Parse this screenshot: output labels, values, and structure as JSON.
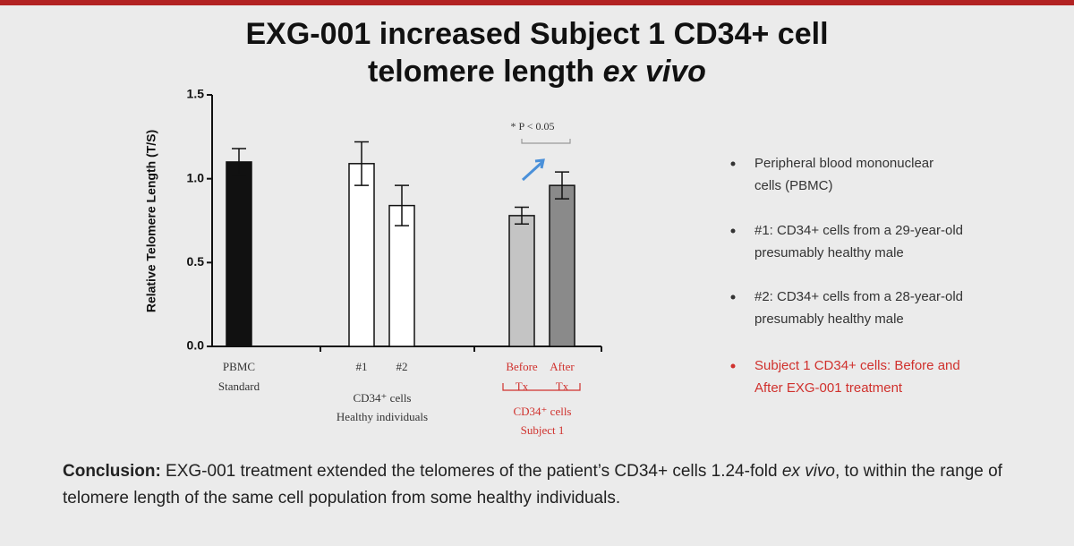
{
  "slide": {
    "title": "EXG-001 increased Subject 1 CD34+ cell",
    "title_line2": "telomere length",
    "title_italic": "ex vivo",
    "bullets": [
      {
        "lines": [
          "Peripheral blood mononuclear",
          "cells (PBMC)"
        ],
        "color": "#333333"
      },
      {
        "lines": [
          "#1: CD34+ cells from a 29-year-old",
          "presumably healthy male"
        ],
        "color": "#333333"
      },
      {
        "lines": [
          "#2: CD34+ cells from a 28-year-old",
          "presumably healthy male"
        ],
        "color": "#333333"
      },
      {
        "lines": [
          "Subject 1 CD34+ cells: Before and",
          "After EXG-001 treatment"
        ],
        "color": "#d0312d"
      }
    ],
    "conclusion_label": "Conclusion:",
    "conclusion_text": " EXG-001 treatment extended the telomeres of the patient’s CD34+ cells 1.24-fold ",
    "conclusion_italic": "ex vivo",
    "conclusion_end": ", to within the range of telomere length of the same cell population from some healthy individuals."
  },
  "chart_data": {
    "type": "bar",
    "y_label": "Relative Telomere Length (T/S)",
    "categories": [
      [
        "PBMC",
        "Standard"
      ],
      [
        "#1"
      ],
      [
        "#2"
      ],
      [
        "Before",
        "Tx"
      ],
      [
        "After",
        "Tx"
      ]
    ],
    "category_label_colors": [
      "#333333",
      "#333333",
      "#333333",
      "#d0312d",
      "#d0312d"
    ],
    "values": [
      1.1,
      1.09,
      0.84,
      0.78,
      0.96
    ],
    "errors": [
      0.08,
      0.13,
      0.12,
      0.05,
      0.08
    ],
    "colors": [
      "#111111",
      "#ffffff",
      "#ffffff",
      "#c4c4c4",
      "#8a8a8a"
    ],
    "groups": [
      {
        "lines": [
          "CD34⁺ cells",
          "Healthy individuals"
        ],
        "color": "#333333"
      },
      {
        "lines": [
          "CD34⁺ cells",
          "Subject 1"
        ],
        "color": "#d0312d"
      }
    ],
    "annotation": "* P < 0.05",
    "ylim": [
      0,
      1.5
    ],
    "yticks": [
      {
        "value": 0,
        "label": "0.0"
      },
      0.5,
      {
        "value": 1,
        "label": "1.0"
      },
      1.5
    ]
  }
}
